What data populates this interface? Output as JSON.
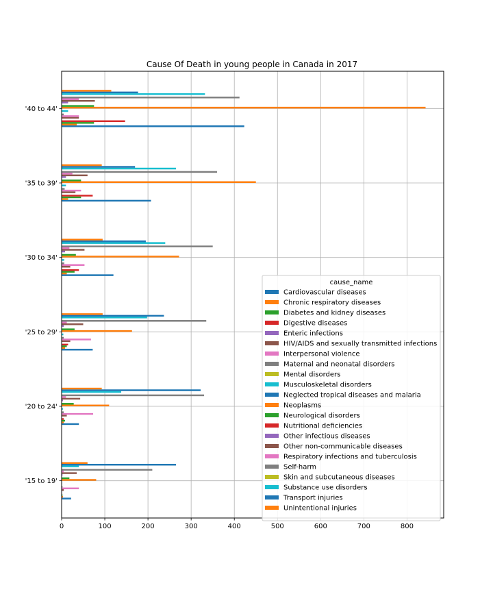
{
  "chart_data": {
    "type": "bar",
    "orientation": "horizontal",
    "title": "Cause Of Death in young people in Canada in 2017",
    "xlabel": "",
    "ylabel": "",
    "xlim": [
      0,
      885
    ],
    "x_ticks": [
      0,
      100,
      200,
      300,
      400,
      500,
      600,
      700,
      800
    ],
    "grid": true,
    "legend_title": "cause_name",
    "legend_position": "lower-right",
    "categories": [
      "'15 to 19'",
      "'20 to 24'",
      "'25 to 29'",
      "'30 to 34'",
      "'35 to 39'",
      "'40 to 44'"
    ],
    "series": [
      {
        "name": "Cardiovascular diseases",
        "color": "#1f77b4",
        "values": [
          22,
          40,
          72,
          120,
          207,
          423
        ]
      },
      {
        "name": "Chronic respiratory diseases",
        "color": "#ff7f0e",
        "values": [
          3,
          5,
          8,
          12,
          15,
          35
        ]
      },
      {
        "name": "Diabetes and kidney diseases",
        "color": "#2ca02c",
        "values": [
          2,
          8,
          12,
          30,
          45,
          75
        ]
      },
      {
        "name": "Digestive diseases",
        "color": "#d62728",
        "values": [
          1,
          5,
          15,
          40,
          72,
          147
        ]
      },
      {
        "name": "Enteric infections",
        "color": "#9467bd",
        "values": [
          0,
          0,
          0,
          0,
          0,
          0
        ]
      },
      {
        "name": "HIV/AIDS and sexually transmitted infections",
        "color": "#8c564b",
        "values": [
          5,
          12,
          20,
          20,
          32,
          40
        ]
      },
      {
        "name": "Interpersonal violence",
        "color": "#e377c2",
        "values": [
          40,
          73,
          68,
          53,
          45,
          40
        ]
      },
      {
        "name": "Maternal and neonatal disorders",
        "color": "#7f7f7f",
        "values": [
          2,
          5,
          5,
          6,
          7,
          5
        ]
      },
      {
        "name": "Mental disorders",
        "color": "#bcbd22",
        "values": [
          0,
          0,
          0,
          0,
          0,
          0
        ]
      },
      {
        "name": "Musculoskeletal disorders",
        "color": "#17becf",
        "values": [
          1,
          3,
          4,
          6,
          10,
          15
        ]
      },
      {
        "name": "Neglected tropical diseases and malaria",
        "color": "#1f77b4",
        "values": [
          0,
          0,
          0,
          0,
          0,
          0
        ]
      },
      {
        "name": "Neoplasms",
        "color": "#ff7f0e",
        "values": [
          80,
          110,
          163,
          272,
          450,
          843
        ]
      },
      {
        "name": "Neurological disorders",
        "color": "#2ca02c",
        "values": [
          18,
          28,
          30,
          33,
          45,
          75
        ]
      },
      {
        "name": "Nutritional deficiencies",
        "color": "#d62728",
        "values": [
          0,
          0,
          0,
          0,
          0,
          0
        ]
      },
      {
        "name": "Other infectious diseases",
        "color": "#9467bd",
        "values": [
          2,
          3,
          5,
          8,
          10,
          15
        ]
      },
      {
        "name": "Other non-communicable diseases",
        "color": "#8c564b",
        "values": [
          35,
          43,
          50,
          53,
          60,
          77
        ]
      },
      {
        "name": "Respiratory infections and tuberculosis",
        "color": "#e377c2",
        "values": [
          5,
          10,
          12,
          18,
          25,
          40
        ]
      },
      {
        "name": "Self-harm",
        "color": "#7f7f7f",
        "values": [
          210,
          330,
          335,
          350,
          360,
          412
        ]
      },
      {
        "name": "Skin and subcutaneous diseases",
        "color": "#bcbd22",
        "values": [
          0,
          0,
          0,
          0,
          0,
          0
        ]
      },
      {
        "name": "Substance use disorders",
        "color": "#17becf",
        "values": [
          40,
          138,
          198,
          240,
          265,
          332
        ]
      },
      {
        "name": "Transport injuries",
        "color": "#1f77b4",
        "values": [
          265,
          322,
          237,
          195,
          170,
          177
        ]
      },
      {
        "name": "Unintentional injuries",
        "color": "#ff7f0e",
        "values": [
          60,
          93,
          95,
          95,
          93,
          115
        ]
      }
    ]
  }
}
